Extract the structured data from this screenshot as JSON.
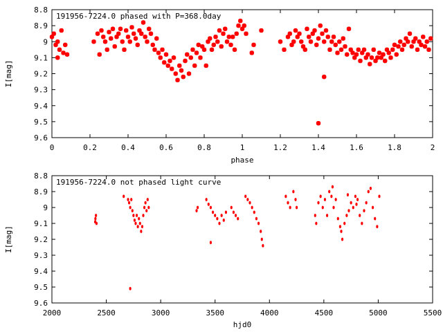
{
  "chart_data": [
    {
      "type": "scatter",
      "title": "191956-7224.0 phased with P=368.0day",
      "xlabel": "phase",
      "ylabel": "I[mag]",
      "xlim": [
        0,
        2
      ],
      "ylim": [
        9.6,
        8.8
      ],
      "y_inverted": true,
      "grid": false,
      "marker": "star",
      "color": "#ff0000",
      "x_ticks": [
        "0",
        "0.2",
        "0.4",
        "0.6",
        "0.8",
        "1",
        "1.2",
        "1.4",
        "1.6",
        "1.8",
        "2"
      ],
      "y_ticks": [
        "8.8",
        "8.9",
        "9",
        "9.1",
        "9.2",
        "9.3",
        "9.4",
        "9.5",
        "9.6"
      ],
      "series": [
        {
          "points": [
            [
              0.0,
              8.97
            ],
            [
              0.01,
              8.95
            ],
            [
              0.02,
              9.02
            ],
            [
              0.03,
              9.0
            ],
            [
              0.04,
              9.05
            ],
            [
              0.05,
              8.93
            ],
            [
              0.06,
              9.07
            ],
            [
              0.07,
              9.02
            ],
            [
              0.08,
              9.08
            ],
            [
              0.03,
              9.1
            ],
            [
              0.22,
              9.0
            ],
            [
              0.24,
              8.95
            ],
            [
              0.25,
              9.08
            ],
            [
              0.26,
              8.93
            ],
            [
              0.27,
              8.97
            ],
            [
              0.28,
              9.0
            ],
            [
              0.29,
              9.05
            ],
            [
              0.3,
              8.94
            ],
            [
              0.31,
              8.98
            ],
            [
              0.32,
              8.92
            ],
            [
              0.33,
              9.03
            ],
            [
              0.34,
              8.97
            ],
            [
              0.35,
              8.95
            ],
            [
              0.36,
              8.92
            ],
            [
              0.37,
              9.0
            ],
            [
              0.38,
              9.05
            ],
            [
              0.39,
              8.93
            ],
            [
              0.4,
              8.97
            ],
            [
              0.41,
              9.0
            ],
            [
              0.42,
              8.91
            ],
            [
              0.43,
              8.95
            ],
            [
              0.44,
              8.98
            ],
            [
              0.45,
              9.02
            ],
            [
              0.46,
              8.93
            ],
            [
              0.47,
              8.95
            ],
            [
              0.48,
              8.88
            ],
            [
              0.49,
              8.97
            ],
            [
              0.5,
              9.0
            ],
            [
              0.51,
              8.92
            ],
            [
              0.52,
              8.95
            ],
            [
              0.53,
              9.02
            ],
            [
              0.54,
              9.05
            ],
            [
              0.55,
              8.98
            ],
            [
              0.56,
              9.07
            ],
            [
              0.57,
              9.1
            ],
            [
              0.58,
              9.05
            ],
            [
              0.59,
              9.13
            ],
            [
              0.6,
              9.08
            ],
            [
              0.61,
              9.15
            ],
            [
              0.62,
              9.12
            ],
            [
              0.63,
              9.17
            ],
            [
              0.64,
              9.1
            ],
            [
              0.65,
              9.2
            ],
            [
              0.66,
              9.24
            ],
            [
              0.67,
              9.15
            ],
            [
              0.68,
              9.18
            ],
            [
              0.69,
              9.22
            ],
            [
              0.7,
              9.12
            ],
            [
              0.71,
              9.08
            ],
            [
              0.72,
              9.2
            ],
            [
              0.73,
              9.1
            ],
            [
              0.74,
              9.05
            ],
            [
              0.75,
              9.15
            ],
            [
              0.76,
              9.07
            ],
            [
              0.77,
              9.02
            ],
            [
              0.78,
              9.1
            ],
            [
              0.79,
              9.03
            ],
            [
              0.8,
              9.05
            ],
            [
              0.81,
              9.15
            ],
            [
              0.82,
              9.0
            ],
            [
              0.83,
              8.98
            ],
            [
              0.84,
              9.05
            ],
            [
              0.85,
              9.02
            ],
            [
              0.86,
              8.97
            ],
            [
              0.87,
              9.0
            ],
            [
              0.88,
              8.93
            ],
            [
              0.89,
              9.03
            ],
            [
              0.9,
              8.95
            ],
            [
              0.91,
              8.92
            ],
            [
              0.92,
              9.0
            ],
            [
              0.93,
              8.97
            ],
            [
              0.94,
              9.02
            ],
            [
              0.95,
              8.97
            ],
            [
              0.96,
              9.05
            ],
            [
              0.97,
              8.95
            ],
            [
              0.98,
              8.9
            ],
            [
              0.99,
              8.87
            ],
            [
              1.0,
              8.92
            ],
            [
              1.01,
              8.9
            ],
            [
              1.02,
              8.95
            ],
            [
              1.05,
              9.07
            ],
            [
              1.06,
              9.02
            ],
            [
              1.1,
              8.93
            ],
            [
              1.2,
              9.0
            ],
            [
              1.22,
              9.05
            ],
            [
              1.24,
              8.97
            ],
            [
              1.25,
              8.95
            ],
            [
              1.26,
              9.02
            ],
            [
              1.27,
              9.0
            ],
            [
              1.28,
              8.93
            ],
            [
              1.29,
              8.97
            ],
            [
              1.3,
              8.95
            ],
            [
              1.31,
              9.0
            ],
            [
              1.32,
              9.03
            ],
            [
              1.33,
              9.05
            ],
            [
              1.34,
              8.92
            ],
            [
              1.35,
              8.97
            ],
            [
              1.36,
              9.0
            ],
            [
              1.37,
              8.95
            ],
            [
              1.38,
              8.93
            ],
            [
              1.39,
              9.02
            ],
            [
              1.4,
              8.98
            ],
            [
              1.41,
              8.9
            ],
            [
              1.42,
              8.95
            ],
            [
              1.43,
              9.0
            ],
            [
              1.44,
              8.93
            ],
            [
              1.45,
              8.97
            ],
            [
              1.46,
              9.05
            ],
            [
              1.47,
              9.0
            ],
            [
              1.48,
              8.97
            ],
            [
              1.49,
              9.02
            ],
            [
              1.5,
              9.07
            ],
            [
              1.51,
              9.0
            ],
            [
              1.52,
              9.05
            ],
            [
              1.53,
              8.98
            ],
            [
              1.54,
              9.03
            ],
            [
              1.55,
              9.08
            ],
            [
              1.56,
              8.92
            ],
            [
              1.57,
              9.05
            ],
            [
              1.58,
              9.07
            ],
            [
              1.59,
              9.1
            ],
            [
              1.6,
              9.08
            ],
            [
              1.61,
              9.05
            ],
            [
              1.62,
              9.12
            ],
            [
              1.63,
              9.07
            ],
            [
              1.64,
              9.05
            ],
            [
              1.65,
              9.1
            ],
            [
              1.66,
              9.08
            ],
            [
              1.67,
              9.14
            ],
            [
              1.68,
              9.1
            ],
            [
              1.69,
              9.05
            ],
            [
              1.7,
              9.12
            ],
            [
              1.71,
              9.1
            ],
            [
              1.72,
              9.07
            ],
            [
              1.73,
              9.1
            ],
            [
              1.74,
              9.08
            ],
            [
              1.75,
              9.12
            ],
            [
              1.76,
              9.05
            ],
            [
              1.77,
              9.07
            ],
            [
              1.78,
              9.1
            ],
            [
              1.79,
              9.05
            ],
            [
              1.8,
              9.02
            ],
            [
              1.81,
              9.08
            ],
            [
              1.82,
              9.03
            ],
            [
              1.83,
              9.0
            ],
            [
              1.84,
              9.05
            ],
            [
              1.85,
              9.02
            ],
            [
              1.86,
              8.98
            ],
            [
              1.87,
              9.0
            ],
            [
              1.88,
              8.95
            ],
            [
              1.89,
              9.03
            ],
            [
              1.9,
              9.0
            ],
            [
              1.91,
              8.98
            ],
            [
              1.92,
              9.05
            ],
            [
              1.93,
              9.0
            ],
            [
              1.94,
              9.02
            ],
            [
              1.95,
              8.97
            ],
            [
              1.96,
              9.03
            ],
            [
              1.97,
              9.0
            ],
            [
              1.98,
              9.05
            ],
            [
              1.99,
              8.98
            ],
            [
              1.4,
              9.51
            ],
            [
              1.43,
              9.22
            ]
          ]
        }
      ]
    },
    {
      "type": "scatter",
      "title": "191956-7224.0 not phased light curve",
      "xlabel": "hjd0",
      "ylabel": "I[mag]",
      "xlim": [
        2000,
        5500
      ],
      "ylim": [
        9.6,
        8.8
      ],
      "y_inverted": true,
      "grid": false,
      "marker": "dot",
      "color": "#ff0000",
      "x_ticks": [
        "2000",
        "2500",
        "3000",
        "3500",
        "4000",
        "4500",
        "5000",
        "5500"
      ],
      "y_ticks": [
        "8.8",
        "8.9",
        "9",
        "9.1",
        "9.2",
        "9.3",
        "9.4",
        "9.5",
        "9.6"
      ],
      "series": [
        {
          "points": [
            [
              2400,
              9.07
            ],
            [
              2405,
              9.05
            ],
            [
              2410,
              9.1
            ],
            [
              2398,
              9.09
            ],
            [
              2660,
              8.93
            ],
            [
              2700,
              8.95
            ],
            [
              2710,
              8.97
            ],
            [
              2720,
              9.0
            ],
            [
              2730,
              8.95
            ],
            [
              2740,
              9.02
            ],
            [
              2750,
              9.05
            ],
            [
              2760,
              9.08
            ],
            [
              2770,
              9.1
            ],
            [
              2780,
              9.05
            ],
            [
              2790,
              9.12
            ],
            [
              2800,
              9.07
            ],
            [
              2810,
              9.1
            ],
            [
              2820,
              9.15
            ],
            [
              2830,
              9.12
            ],
            [
              2840,
              9.05
            ],
            [
              2850,
              9.0
            ],
            [
              2860,
              8.97
            ],
            [
              2870,
              9.02
            ],
            [
              2880,
              8.95
            ],
            [
              2890,
              9.0
            ],
            [
              2720,
              9.51
            ],
            [
              3330,
              9.02
            ],
            [
              3340,
              9.0
            ],
            [
              3420,
              8.95
            ],
            [
              3440,
              8.98
            ],
            [
              3460,
              9.0
            ],
            [
              3480,
              9.03
            ],
            [
              3500,
              9.05
            ],
            [
              3520,
              9.07
            ],
            [
              3540,
              9.1
            ],
            [
              3560,
              9.05
            ],
            [
              3580,
              9.08
            ],
            [
              3600,
              9.03
            ],
            [
              3460,
              9.22
            ],
            [
              3650,
              9.0
            ],
            [
              3670,
              9.03
            ],
            [
              3690,
              9.05
            ],
            [
              3710,
              9.07
            ],
            [
              3780,
              8.93
            ],
            [
              3800,
              8.95
            ],
            [
              3820,
              8.97
            ],
            [
              3840,
              9.0
            ],
            [
              3860,
              9.03
            ],
            [
              3880,
              9.07
            ],
            [
              3900,
              9.1
            ],
            [
              3920,
              9.15
            ],
            [
              3930,
              9.2
            ],
            [
              3940,
              9.24
            ],
            [
              4150,
              8.93
            ],
            [
              4170,
              8.97
            ],
            [
              4190,
              9.0
            ],
            [
              4220,
              8.9
            ],
            [
              4240,
              8.95
            ],
            [
              4250,
              9.0
            ],
            [
              4420,
              9.05
            ],
            [
              4430,
              9.1
            ],
            [
              4450,
              8.97
            ],
            [
              4470,
              8.93
            ],
            [
              4490,
              9.0
            ],
            [
              4510,
              8.95
            ],
            [
              4530,
              9.05
            ],
            [
              4550,
              8.9
            ],
            [
              4570,
              8.93
            ],
            [
              4590,
              9.0
            ],
            [
              4610,
              8.95
            ],
            [
              4630,
              9.07
            ],
            [
              4650,
              9.12
            ],
            [
              4670,
              9.2
            ],
            [
              4690,
              9.1
            ],
            [
              4710,
              9.05
            ],
            [
              4730,
              9.02
            ],
            [
              4750,
              8.97
            ],
            [
              4770,
              9.0
            ],
            [
              4790,
              8.93
            ],
            [
              4810,
              8.95
            ],
            [
              4830,
              9.05
            ],
            [
              4850,
              9.1
            ],
            [
              4870,
              9.02
            ],
            [
              4890,
              8.97
            ],
            [
              4910,
              8.9
            ],
            [
              4930,
              8.88
            ],
            [
              4950,
              9.0
            ],
            [
              4970,
              9.07
            ],
            [
              4990,
              9.12
            ],
            [
              5010,
              8.93
            ],
            [
              4580,
              8.87
            ],
            [
              4660,
              9.15
            ],
            [
              4720,
              8.92
            ],
            [
              4800,
              8.98
            ]
          ]
        }
      ]
    }
  ]
}
